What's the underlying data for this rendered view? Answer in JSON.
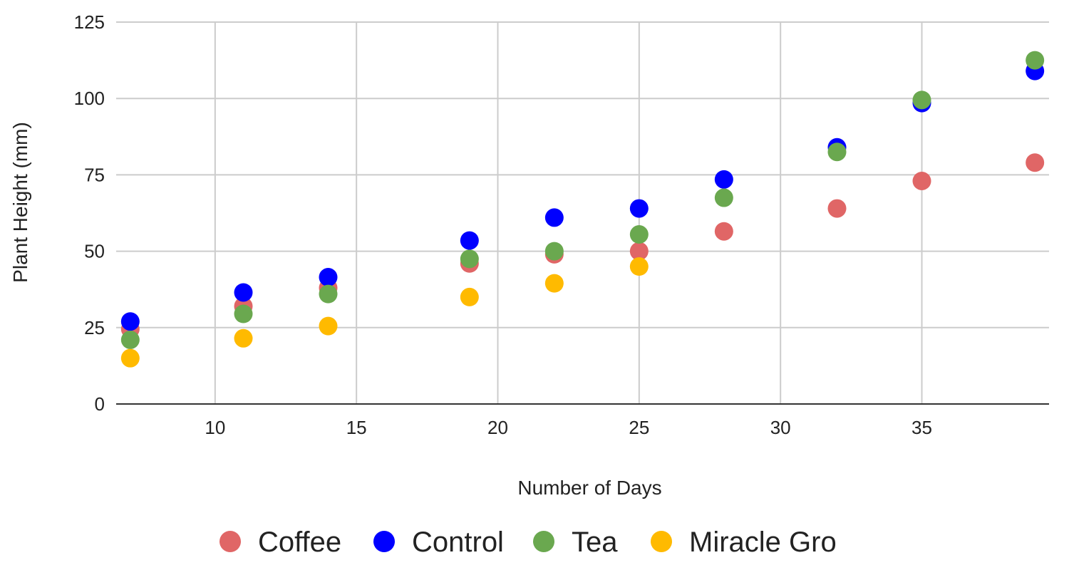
{
  "chart_data": {
    "type": "scatter",
    "title": "",
    "xlabel": "Number of Days",
    "ylabel": "Plant Height (mm)",
    "xlim": [
      6.5,
      39.5
    ],
    "ylim": [
      0,
      125
    ],
    "x_ticks": [
      10,
      15,
      20,
      25,
      30,
      35
    ],
    "y_ticks": [
      0,
      25,
      50,
      75,
      100,
      125
    ],
    "grid": true,
    "legend_position": "bottom",
    "series": [
      {
        "name": "Coffee",
        "color": "#e06666",
        "points": [
          [
            7,
            24.5
          ],
          [
            11,
            32
          ],
          [
            14,
            38
          ],
          [
            19,
            46
          ],
          [
            22,
            49
          ],
          [
            25,
            50
          ],
          [
            28,
            56.5
          ],
          [
            32,
            64
          ],
          [
            35,
            73
          ],
          [
            39,
            79
          ]
        ]
      },
      {
        "name": "Control",
        "color": "#0000ff",
        "points": [
          [
            7,
            27
          ],
          [
            11,
            36.5
          ],
          [
            14,
            41.5
          ],
          [
            19,
            53.5
          ],
          [
            22,
            61
          ],
          [
            25,
            64
          ],
          [
            28,
            73.5
          ],
          [
            32,
            84
          ],
          [
            35,
            98.5
          ],
          [
            39,
            109
          ]
        ]
      },
      {
        "name": "Tea",
        "color": "#6aa84f",
        "points": [
          [
            7,
            21
          ],
          [
            11,
            29.5
          ],
          [
            14,
            36
          ],
          [
            19,
            47.5
          ],
          [
            22,
            50
          ],
          [
            25,
            55.5
          ],
          [
            28,
            67.5
          ],
          [
            32,
            82.5
          ],
          [
            35,
            99.5
          ],
          [
            39,
            112.5
          ]
        ]
      },
      {
        "name": "Miracle Gro",
        "color": "#ffba00",
        "points": [
          [
            7,
            15
          ],
          [
            11,
            21.5
          ],
          [
            14,
            25.5
          ],
          [
            19,
            35
          ],
          [
            22,
            39.5
          ],
          [
            25,
            45
          ]
        ]
      }
    ]
  }
}
